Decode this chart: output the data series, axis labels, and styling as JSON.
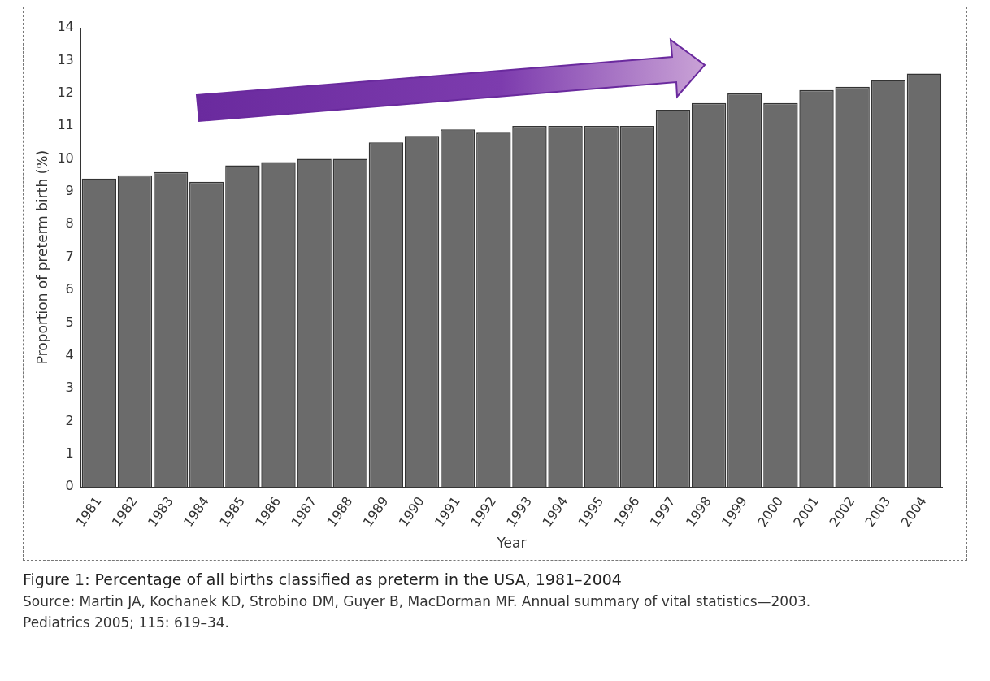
{
  "chart_data": {
    "type": "bar",
    "categories": [
      "1981",
      "1982",
      "1983",
      "1984",
      "1985",
      "1986",
      "1987",
      "1988",
      "1989",
      "1990",
      "1991",
      "1992",
      "1993",
      "1994",
      "1995",
      "1996",
      "1997",
      "1998",
      "1999",
      "2000",
      "2001",
      "2002",
      "2003",
      "2004"
    ],
    "values": [
      9.4,
      9.5,
      9.6,
      9.3,
      9.8,
      9.9,
      10.0,
      10.0,
      10.5,
      10.7,
      10.9,
      10.8,
      11.0,
      11.0,
      11.0,
      11.0,
      11.5,
      11.7,
      12.0,
      11.7,
      12.1,
      12.2,
      12.4,
      12.6
    ],
    "color": "#6b6b6b",
    "ylim": [
      0,
      14
    ],
    "yticks": [
      0,
      1,
      2,
      3,
      4,
      5,
      6,
      7,
      8,
      9,
      10,
      11,
      12,
      13,
      14
    ],
    "grid": false,
    "legend": false,
    "xlabel": "Year",
    "ylabel": "Proportion of preterm birth (%)",
    "title": "Figure 1: Percentage of all births classified as preterm in the USA, 1981–2004",
    "annotations": [
      "Source: Martin JA, Kochanek KD, Strobino DM, Guyer B, MacDorman MF. Annual summary of vital statistics—2003.",
      "Pediatrics 2005; 115: 619–34."
    ]
  }
}
